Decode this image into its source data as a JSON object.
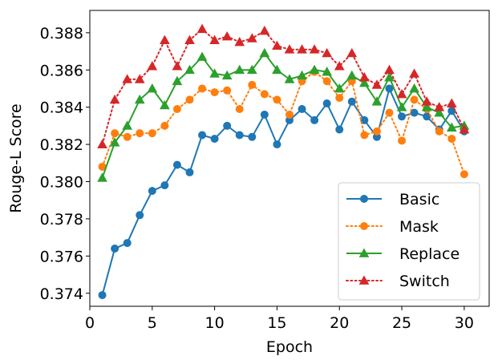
{
  "chart_data": {
    "type": "line",
    "xlabel": "Epoch",
    "ylabel": "Rouge-L Score",
    "xlim": [
      0,
      32
    ],
    "ylim": [
      0.3733,
      0.3892
    ],
    "x_ticks": [
      0,
      5,
      10,
      15,
      20,
      25,
      30
    ],
    "y_ticks": [
      0.374,
      0.376,
      0.378,
      0.38,
      0.382,
      0.384,
      0.386,
      0.388
    ],
    "x_tick_labels": [
      "0",
      "5",
      "10",
      "15",
      "20",
      "25",
      "30"
    ],
    "y_tick_labels": [
      "0.374",
      "0.376",
      "0.378",
      "0.380",
      "0.382",
      "0.384",
      "0.386",
      "0.388"
    ],
    "grid": false,
    "legend_position": "bottom-right",
    "x": [
      1,
      2,
      3,
      4,
      5,
      6,
      7,
      8,
      9,
      10,
      11,
      12,
      13,
      14,
      15,
      16,
      17,
      18,
      19,
      20,
      21,
      22,
      23,
      24,
      25,
      26,
      27,
      28,
      29,
      30
    ],
    "series": [
      {
        "name": "Basic",
        "color": "#1f77b4",
        "marker": "circle",
        "linestyle": "solid",
        "values": [
          0.3739,
          0.3764,
          0.3767,
          0.3782,
          0.3795,
          0.3798,
          0.3809,
          0.3805,
          0.3825,
          0.3823,
          0.383,
          0.3825,
          0.3824,
          0.3836,
          0.382,
          0.3833,
          0.3839,
          0.3833,
          0.3842,
          0.3828,
          0.3843,
          0.3833,
          0.3824,
          0.385,
          0.3835,
          0.3837,
          0.3835,
          0.3828,
          0.3838,
          0.3827
        ]
      },
      {
        "name": "Mask",
        "color": "#ff7f0e",
        "marker": "circle",
        "linestyle": "dotted",
        "values": [
          0.3808,
          0.3826,
          0.3824,
          0.3826,
          0.3826,
          0.383,
          0.3839,
          0.3844,
          0.385,
          0.3848,
          0.3849,
          0.3839,
          0.3852,
          0.3847,
          0.3844,
          0.3836,
          0.3854,
          0.3859,
          0.3854,
          0.3845,
          0.3854,
          0.3825,
          0.3827,
          0.3837,
          0.3822,
          0.3844,
          0.3839,
          0.3827,
          0.3823,
          0.3804
        ]
      },
      {
        "name": "Replace",
        "color": "#2ca02c",
        "marker": "triangle",
        "linestyle": "solid",
        "values": [
          0.3802,
          0.3821,
          0.383,
          0.3844,
          0.385,
          0.3841,
          0.3854,
          0.386,
          0.3867,
          0.3858,
          0.3857,
          0.386,
          0.386,
          0.3869,
          0.386,
          0.3855,
          0.3857,
          0.386,
          0.3859,
          0.385,
          0.3857,
          0.3853,
          0.3843,
          0.3856,
          0.384,
          0.385,
          0.384,
          0.3837,
          0.3829,
          0.383
        ]
      },
      {
        "name": "Switch",
        "color": "#d62728",
        "marker": "triangle",
        "linestyle": "dotted",
        "values": [
          0.382,
          0.3844,
          0.3855,
          0.3855,
          0.3862,
          0.3876,
          0.3862,
          0.3876,
          0.3882,
          0.3876,
          0.3878,
          0.3875,
          0.3877,
          0.3881,
          0.3873,
          0.3871,
          0.3871,
          0.3871,
          0.3869,
          0.3862,
          0.3869,
          0.3856,
          0.3852,
          0.386,
          0.3847,
          0.3858,
          0.3843,
          0.384,
          0.3842,
          0.3828
        ]
      }
    ]
  }
}
